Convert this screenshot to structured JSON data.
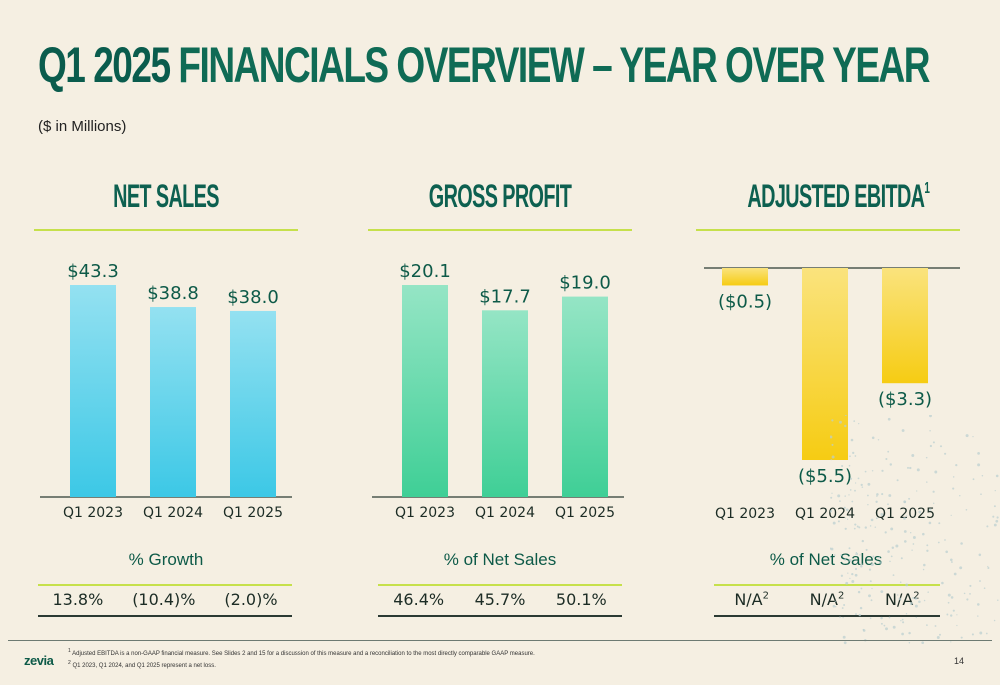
{
  "title": {
    "part1": "Q1 2025",
    "part2": " FINANCIALS OVERVIEW – YEAR OVER YEAR"
  },
  "subtitle": "($ in Millions)",
  "chart_data": [
    {
      "type": "bar",
      "title": "NET SALES",
      "categories": [
        "Q1 2023",
        "Q1 2024",
        "Q1 2025"
      ],
      "values": [
        43.3,
        38.8,
        38.0
      ],
      "data_labels": [
        "$43.3",
        "$38.8",
        "$38.0"
      ],
      "metric_label": "% Growth",
      "metrics": [
        "13.8%",
        "(10.4)%",
        "(2.0)%"
      ],
      "color": "#3cc8e6"
    },
    {
      "type": "bar",
      "title": "GROSS PROFIT",
      "categories": [
        "Q1 2023",
        "Q1 2024",
        "Q1 2025"
      ],
      "values": [
        20.1,
        17.7,
        19.0
      ],
      "data_labels": [
        "$20.1",
        "$17.7",
        "$19.0"
      ],
      "metric_label": "% of Net Sales",
      "metrics": [
        "46.4%",
        "45.7%",
        "50.1%"
      ],
      "color": "#3fcf96"
    },
    {
      "type": "bar",
      "title": "ADJUSTED EBITDA",
      "title_sup": "1",
      "categories": [
        "Q1 2023",
        "Q1 2024",
        "Q1 2025"
      ],
      "values": [
        -0.5,
        -5.5,
        -3.3
      ],
      "data_labels": [
        "($0.5)",
        "($5.5)",
        "($3.3)"
      ],
      "metric_label": "% of Net Sales",
      "metrics": [
        "N/A",
        "N/A",
        "N/A"
      ],
      "metric_sup": "2",
      "color": "#f6cc13"
    }
  ],
  "footnotes": {
    "n1_sup": "1",
    "n1": " Adjusted EBITDA is a non-GAAP financial measure. See Slides 2 and 15 for a discussion of this measure and a reconciliation to the most directly comparable GAAP measure.",
    "n2_sup": "2",
    "n2": " Q1 2023, Q1 2024, and Q1 2025 represent a net loss."
  },
  "logo": "zevia",
  "page_number": "14",
  "colors": {
    "title_dark": "#0a5c4d",
    "lime": "#c6e04b",
    "background": "#f5efe2"
  }
}
